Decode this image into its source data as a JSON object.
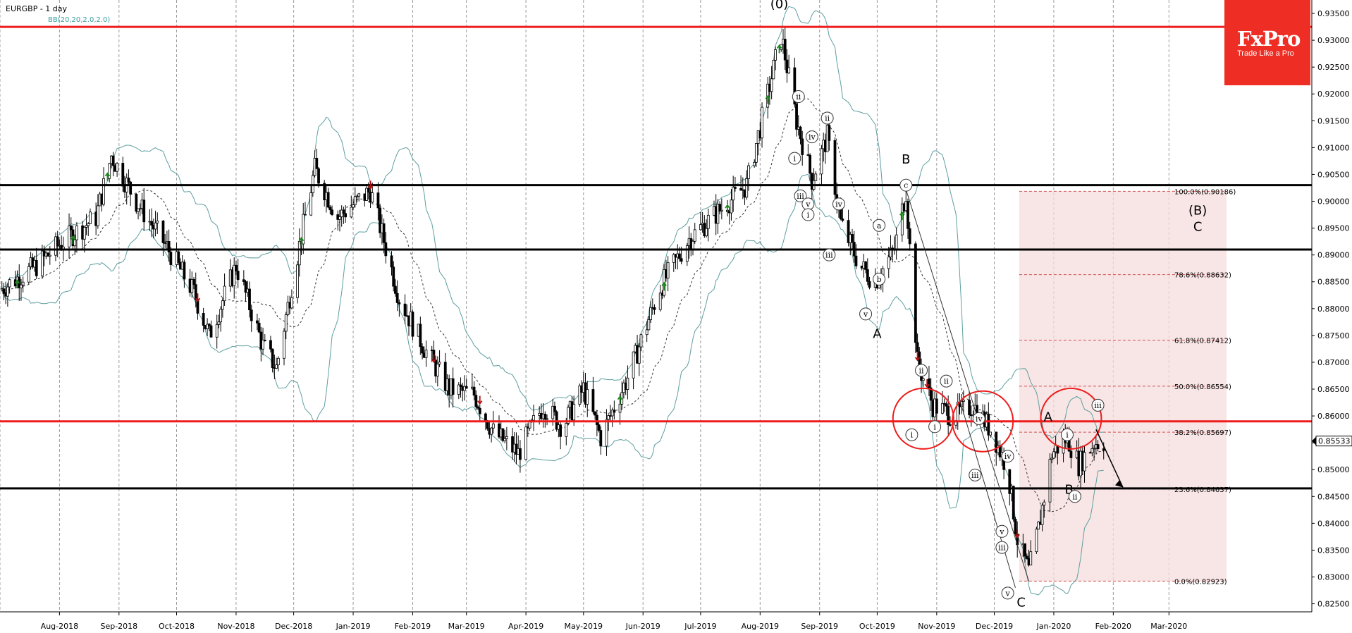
{
  "header": {
    "symbol_title": "EURGBP - 1 day",
    "indicator_label": "BB(20,20,2.0,2.0)"
  },
  "logo": {
    "brand": "FxPro",
    "tagline": "Trade Like a Pro",
    "color": "#ee2e24"
  },
  "colors": {
    "level_red": "#ee1c1c",
    "level_black": "#000000",
    "bollinger": "#5f9ea0",
    "fib_zone": "#f6dcdc",
    "up_arrow": "#1a8a1a",
    "down_arrow": "#b01010"
  },
  "chart_data": {
    "type": "candlestick",
    "title": "EURGBP - 1 day",
    "indicator": "BB(20,20,2.0,2.0)",
    "ylim": [
      0.8235,
      0.9375
    ],
    "y_ticks": [
      "0.93500",
      "0.93000",
      "0.92500",
      "0.92000",
      "0.91500",
      "0.91000",
      "0.90500",
      "0.90000",
      "0.89500",
      "0.89000",
      "0.88500",
      "0.88000",
      "0.87500",
      "0.87000",
      "0.86500",
      "0.86000",
      "0.85500",
      "0.85000",
      "0.84500",
      "0.84000",
      "0.83500",
      "0.83000",
      "0.82500"
    ],
    "x_ticks": [
      "Aug-2018",
      "Sep-2018",
      "Oct-2018",
      "Nov-2018",
      "Dec-2018",
      "Jan-2019",
      "Feb-2019",
      "Mar-2019",
      "Apr-2019",
      "May-2019",
      "Jun-2019",
      "Jul-2019",
      "Aug-2019",
      "Sep-2019",
      "Oct-2019",
      "Nov-2019",
      "Dec-2019",
      "Jan-2020",
      "Feb-2020",
      "Mar-2020"
    ],
    "x_range": [
      "2018-07-01",
      "2020-03-31"
    ],
    "current_price": "0.85533",
    "price_path": [
      {
        "d": "2018-07-01",
        "p": 0.8835
      },
      {
        "d": "2018-07-20",
        "p": 0.888
      },
      {
        "d": "2018-08-01",
        "p": 0.892
      },
      {
        "d": "2018-08-20",
        "p": 0.897
      },
      {
        "d": "2018-08-28",
        "p": 0.9085
      },
      {
        "d": "2018-09-10",
        "p": 0.9
      },
      {
        "d": "2018-09-25",
        "p": 0.892
      },
      {
        "d": "2018-10-10",
        "p": 0.883
      },
      {
        "d": "2018-10-18",
        "p": 0.875
      },
      {
        "d": "2018-11-01",
        "p": 0.888
      },
      {
        "d": "2018-11-15",
        "p": 0.873
      },
      {
        "d": "2018-11-22",
        "p": 0.869
      },
      {
        "d": "2018-12-03",
        "p": 0.89
      },
      {
        "d": "2018-12-12",
        "p": 0.906
      },
      {
        "d": "2018-12-24",
        "p": 0.897
      },
      {
        "d": "2019-01-10",
        "p": 0.902
      },
      {
        "d": "2019-01-25",
        "p": 0.882
      },
      {
        "d": "2019-02-08",
        "p": 0.872
      },
      {
        "d": "2019-02-20",
        "p": 0.865
      },
      {
        "d": "2019-03-05",
        "p": 0.864
      },
      {
        "d": "2019-03-15",
        "p": 0.857
      },
      {
        "d": "2019-03-28",
        "p": 0.853
      },
      {
        "d": "2019-04-10",
        "p": 0.862
      },
      {
        "d": "2019-04-20",
        "p": 0.858
      },
      {
        "d": "2019-05-01",
        "p": 0.865
      },
      {
        "d": "2019-05-10",
        "p": 0.856
      },
      {
        "d": "2019-05-25",
        "p": 0.868
      },
      {
        "d": "2019-06-10",
        "p": 0.884
      },
      {
        "d": "2019-06-25",
        "p": 0.893
      },
      {
        "d": "2019-07-10",
        "p": 0.898
      },
      {
        "d": "2019-07-25",
        "p": 0.903
      },
      {
        "d": "2019-08-05",
        "p": 0.92
      },
      {
        "d": "2019-08-12",
        "p": 0.931
      },
      {
        "d": "2019-08-20",
        "p": 0.915
      },
      {
        "d": "2019-08-28",
        "p": 0.904
      },
      {
        "d": "2019-09-05",
        "p": 0.912
      },
      {
        "d": "2019-09-12",
        "p": 0.896
      },
      {
        "d": "2019-09-22",
        "p": 0.888
      },
      {
        "d": "2019-09-30",
        "p": 0.885
      },
      {
        "d": "2019-10-10",
        "p": 0.891
      },
      {
        "d": "2019-10-16",
        "p": 0.902
      },
      {
        "d": "2019-10-22",
        "p": 0.87
      },
      {
        "d": "2019-10-30",
        "p": 0.862
      },
      {
        "d": "2019-11-10",
        "p": 0.86
      },
      {
        "d": "2019-11-20",
        "p": 0.862
      },
      {
        "d": "2019-11-30",
        "p": 0.857
      },
      {
        "d": "2019-12-08",
        "p": 0.85
      },
      {
        "d": "2019-12-13",
        "p": 0.837
      },
      {
        "d": "2019-12-19",
        "p": 0.831
      },
      {
        "d": "2019-12-24",
        "p": 0.839
      },
      {
        "d": "2019-12-31",
        "p": 0.853
      },
      {
        "d": "2020-01-08",
        "p": 0.856
      },
      {
        "d": "2020-01-14",
        "p": 0.851
      },
      {
        "d": "2020-01-22",
        "p": 0.855
      },
      {
        "d": "2020-01-27",
        "p": 0.8553
      }
    ],
    "horizontal_levels": [
      {
        "price": 0.9325,
        "color": "#ee1c1c"
      },
      {
        "price": 0.903,
        "color": "#000000"
      },
      {
        "price": 0.891,
        "color": "#000000"
      },
      {
        "price": 0.859,
        "color": "#ee1c1c"
      },
      {
        "price": 0.8465,
        "color": "#000000"
      }
    ],
    "fibonacci": {
      "start": "2019-12-14",
      "end": "2020-03-31",
      "levels": [
        {
          "label": "100.0%(0.90186)",
          "price": 0.90186
        },
        {
          "label": "78.6%(0.88632)",
          "price": 0.88632
        },
        {
          "label": "61.8%(0.87412)",
          "price": 0.87412
        },
        {
          "label": "50.0%(0.86554)",
          "price": 0.86554
        },
        {
          "label": "38.2%(0.85697)",
          "price": 0.85697
        },
        {
          "label": "23.6%(0.84637)",
          "price": 0.84637
        },
        {
          "label": "0.0%(0.82923)",
          "price": 0.82923
        }
      ]
    },
    "wave_labels": [
      {
        "text": "(0)",
        "d": "2019-08-11",
        "p": 0.936,
        "big": true
      },
      {
        "text": "B",
        "d": "2019-10-16",
        "p": 0.907,
        "big": true
      },
      {
        "text": "A",
        "d": "2019-10-01",
        "p": 0.8745,
        "big": true
      },
      {
        "text": "(B)",
        "d": "2020-03-16",
        "p": 0.8975,
        "big": true
      },
      {
        "text": "C",
        "d": "2020-03-16",
        "p": 0.8945,
        "big": true
      },
      {
        "text": "A",
        "d": "2019-12-29",
        "p": 0.859,
        "big": true
      },
      {
        "text": "B",
        "d": "2020-01-09",
        "p": 0.8455,
        "big": true
      },
      {
        "text": "C",
        "d": "2019-12-15",
        "p": 0.8245,
        "big": true
      },
      {
        "text": "ii",
        "d": "2019-08-21",
        "p": 0.9195,
        "big": false
      },
      {
        "text": "i",
        "d": "2019-08-19",
        "p": 0.908,
        "big": false
      },
      {
        "text": "iv",
        "d": "2019-08-28",
        "p": 0.912,
        "big": false
      },
      {
        "text": "ii",
        "d": "2019-09-05",
        "p": 0.9155,
        "big": false
      },
      {
        "text": "iii",
        "d": "2019-08-22",
        "p": 0.901,
        "big": false
      },
      {
        "text": "v",
        "d": "2019-08-26",
        "p": 0.8995,
        "big": false
      },
      {
        "text": "i",
        "d": "2019-08-26",
        "p": 0.8975,
        "big": false
      },
      {
        "text": "iv",
        "d": "2019-09-11",
        "p": 0.8995,
        "big": false
      },
      {
        "text": "iii",
        "d": "2019-09-06",
        "p": 0.89,
        "big": false
      },
      {
        "text": "a",
        "d": "2019-10-02",
        "p": 0.8955,
        "big": false
      },
      {
        "text": "b",
        "d": "2019-10-02",
        "p": 0.8855,
        "big": false
      },
      {
        "text": "v",
        "d": "2019-09-25",
        "p": 0.879,
        "big": false
      },
      {
        "text": "c",
        "d": "2019-10-16",
        "p": 0.903,
        "big": false
      },
      {
        "text": "ii",
        "d": "2019-10-24",
        "p": 0.8685,
        "big": false
      },
      {
        "text": "i",
        "d": "2019-10-19",
        "p": 0.8565,
        "big": false
      },
      {
        "text": "ii",
        "d": "2019-11-06",
        "p": 0.8665,
        "big": false
      },
      {
        "text": "i",
        "d": "2019-10-31",
        "p": 0.858,
        "big": false
      },
      {
        "text": "iv",
        "d": "2019-11-23",
        "p": 0.8595,
        "big": false
      },
      {
        "text": "iv",
        "d": "2019-12-08",
        "p": 0.8525,
        "big": false
      },
      {
        "text": "iii",
        "d": "2019-11-21",
        "p": 0.849,
        "big": false
      },
      {
        "text": "v",
        "d": "2019-12-05",
        "p": 0.8385,
        "big": false
      },
      {
        "text": "iii",
        "d": "2019-12-05",
        "p": 0.8355,
        "big": false
      },
      {
        "text": "v",
        "d": "2019-12-08",
        "p": 0.827,
        "big": false
      },
      {
        "text": "i",
        "d": "2020-01-08",
        "p": 0.8565,
        "big": false
      },
      {
        "text": "iii",
        "d": "2020-01-24",
        "p": 0.862,
        "big": false
      },
      {
        "text": "ii",
        "d": "2020-01-12",
        "p": 0.845,
        "big": false
      }
    ]
  }
}
